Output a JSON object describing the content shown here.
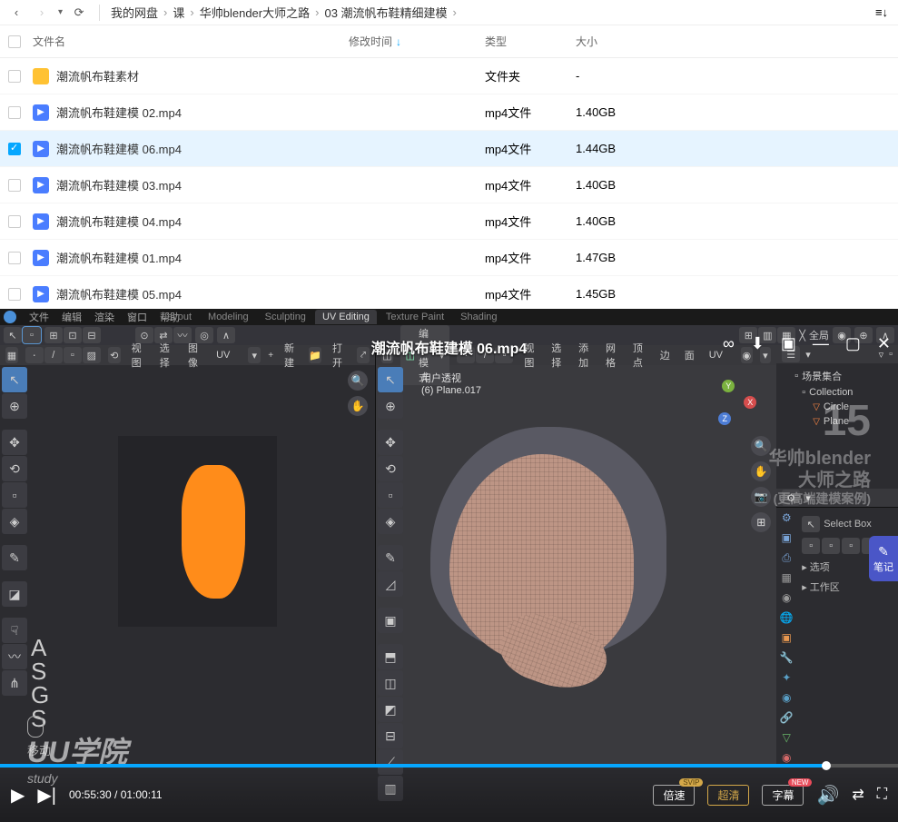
{
  "breadcrumb": {
    "root": "我的网盘",
    "c1": "课",
    "c2": "华帅blender大师之路",
    "c3": "03 潮流帆布鞋精细建模"
  },
  "headers": {
    "name": "文件名",
    "mod": "修改时间",
    "type": "类型",
    "size": "大小"
  },
  "files": [
    {
      "name": "潮流帆布鞋素材",
      "type": "文件夹",
      "size": "-",
      "icon": "folder",
      "selected": false
    },
    {
      "name": "潮流帆布鞋建模 02.mp4",
      "type": "mp4文件",
      "size": "1.40GB",
      "icon": "video",
      "selected": false
    },
    {
      "name": "潮流帆布鞋建模 06.mp4",
      "type": "mp4文件",
      "size": "1.44GB",
      "icon": "video",
      "selected": true
    },
    {
      "name": "潮流帆布鞋建模 03.mp4",
      "type": "mp4文件",
      "size": "1.40GB",
      "icon": "video",
      "selected": false
    },
    {
      "name": "潮流帆布鞋建模 04.mp4",
      "type": "mp4文件",
      "size": "1.40GB",
      "icon": "video",
      "selected": false
    },
    {
      "name": "潮流帆布鞋建模 01.mp4",
      "type": "mp4文件",
      "size": "1.47GB",
      "icon": "video",
      "selected": false
    },
    {
      "name": "潮流帆布鞋建模 05.mp4",
      "type": "mp4文件",
      "size": "1.45GB",
      "icon": "video",
      "selected": false
    }
  ],
  "video": {
    "title": "潮流帆布鞋建模 06.mp4",
    "current": "00:55:30",
    "total": "01:00:11",
    "progress_pct": 92,
    "speed": "倍速",
    "quality": "超清",
    "subtitle": "字幕",
    "svip": "SVIP",
    "new": "NEW"
  },
  "blender": {
    "menu": [
      "文件",
      "编辑",
      "渲染",
      "窗口",
      "帮助"
    ],
    "workspaces": [
      "Layout",
      "Modeling",
      "Sculpting",
      "UV Editing",
      "Texture Paint",
      "Shading"
    ],
    "active_ws": "UV Editing",
    "global": "全局",
    "uv_header": [
      "视图",
      "选择",
      "图像",
      "UV"
    ],
    "uv_new": "新建",
    "uv_open": "打开",
    "mode": "编辑模式",
    "v3d_header": [
      "视图",
      "选择",
      "添加",
      "网格",
      "顶点",
      "边",
      "面",
      "UV"
    ],
    "v3d_info1": "用户透视",
    "v3d_info2": "(6) Plane.017",
    "asgs": [
      "A",
      "S",
      "G",
      "S"
    ],
    "mouse_label": "移动",
    "outliner_title": "场景集合",
    "collection": "Collection",
    "items": [
      "Circle",
      "Plane"
    ],
    "select_box": "Select Box",
    "props": [
      "选项",
      "工作区"
    ]
  },
  "watermark": {
    "logo": "15",
    "line1": "华帅blender",
    "line2": "大师之路",
    "line3": "(更高端建模案例)"
  },
  "study": {
    "big": "UU学院",
    "small": "study"
  },
  "notes": "笔记",
  "colors": {
    "accent": "#06a7ff",
    "folder": "#ffc233",
    "video_icon": "#4a7dff",
    "shoe_orange": "#ff8c1a",
    "shoe_mesh": "#bd9585",
    "gold": "#d4a849"
  }
}
